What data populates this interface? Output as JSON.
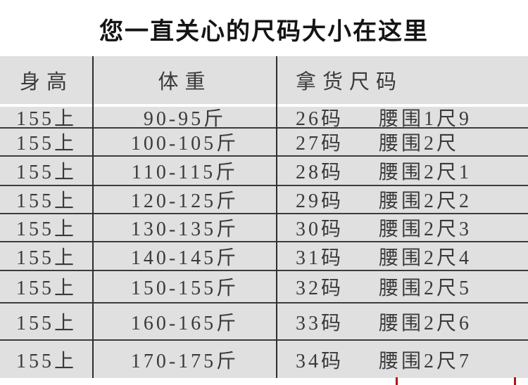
{
  "title": "您一直关心的尺码大小在这里",
  "table": {
    "headers": [
      "身高",
      "体重",
      "拿货尺码"
    ],
    "rows": [
      {
        "height": "155上",
        "weight": "90-95斤",
        "size": "26码",
        "waist": "腰围1尺9"
      },
      {
        "height": "155上",
        "weight": "100-105斤",
        "size": "27码",
        "waist": "腰围2尺"
      },
      {
        "height": "155上",
        "weight": "110-115斤",
        "size": "28码",
        "waist": "腰围2尺1"
      },
      {
        "height": "155上",
        "weight": "120-125斤",
        "size": "29码",
        "waist": "腰围2尺2"
      },
      {
        "height": "155上",
        "weight": "130-135斤",
        "size": "30码",
        "waist": "腰围2尺3"
      },
      {
        "height": "155上",
        "weight": "140-145斤",
        "size": "31码",
        "waist": "腰围2尺4"
      },
      {
        "height": "155上",
        "weight": "150-155斤",
        "size": "32码",
        "waist": "腰围2尺5"
      },
      {
        "height": "155上",
        "weight": "160-165斤",
        "size": "33码",
        "waist": "腰围2尺6"
      },
      {
        "height": "155上",
        "weight": "170-175斤",
        "size": "34码",
        "waist": "腰围2尺7"
      }
    ]
  },
  "colors": {
    "table_background": "#e0e0e0",
    "table_text": "#3a3a3a",
    "separator": "#3c3c3c",
    "title_text": "#141414",
    "accent_red": "#b01212"
  }
}
